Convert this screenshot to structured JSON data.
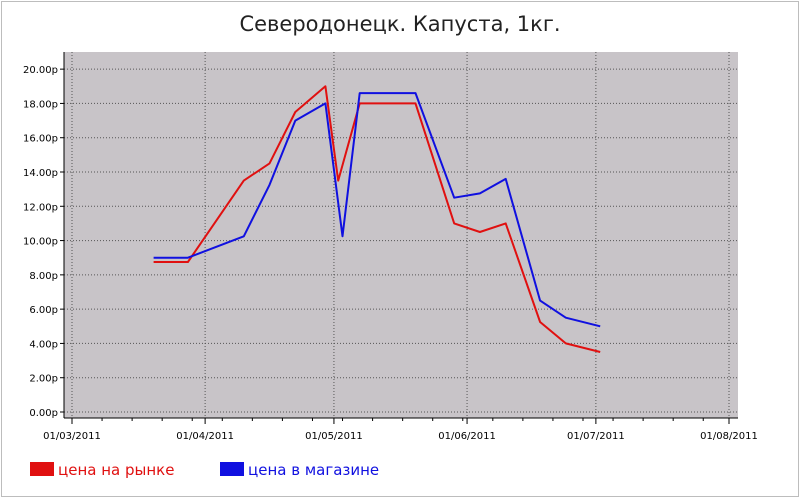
{
  "chart_data": {
    "type": "line",
    "title": "Северодонецк. Капуста, 1кг.",
    "xlabel": "",
    "ylabel": "",
    "ylim": [
      0,
      21
    ],
    "x_tick_labels": [
      "01/03/2011",
      "01/04/2011",
      "01/05/2011",
      "01/06/2011",
      "01/07/2011",
      "01/08/2011"
    ],
    "x_tick_dates": [
      "2011-03-01",
      "2011-04-01",
      "2011-05-01",
      "2011-06-01",
      "2011-07-01",
      "2011-08-01"
    ],
    "y_ticks": [
      0,
      2,
      4,
      6,
      8,
      10,
      12,
      14,
      16,
      18,
      20
    ],
    "y_tick_labels": [
      "0.00р",
      "2.00р",
      "4.00р",
      "6.00р",
      "8.00р",
      "10.00р",
      "12.00р",
      "14.00р",
      "16.00р",
      "18.00р",
      "20.00р"
    ],
    "grid": true,
    "legend": "bottom-left",
    "series": [
      {
        "name": "цена на рынке",
        "color": "#e01010",
        "points": [
          {
            "x": "2011-03-20",
            "y": 8.75
          },
          {
            "x": "2011-03-28",
            "y": 8.75
          },
          {
            "x": "2011-04-10",
            "y": 13.5
          },
          {
            "x": "2011-04-16",
            "y": 14.5
          },
          {
            "x": "2011-04-22",
            "y": 17.5
          },
          {
            "x": "2011-04-29",
            "y": 19.0
          },
          {
            "x": "2011-05-02",
            "y": 13.5
          },
          {
            "x": "2011-05-07",
            "y": 18.0
          },
          {
            "x": "2011-05-20",
            "y": 18.0
          },
          {
            "x": "2011-05-29",
            "y": 11.0
          },
          {
            "x": "2011-06-04",
            "y": 10.5
          },
          {
            "x": "2011-06-10",
            "y": 11.0
          },
          {
            "x": "2011-06-18",
            "y": 5.25
          },
          {
            "x": "2011-06-24",
            "y": 4.0
          },
          {
            "x": "2011-07-02",
            "y": 3.5
          }
        ]
      },
      {
        "name": "цена в магазине",
        "color": "#1010e0",
        "points": [
          {
            "x": "2011-03-20",
            "y": 9.0
          },
          {
            "x": "2011-03-28",
            "y": 9.0
          },
          {
            "x": "2011-04-10",
            "y": 10.25
          },
          {
            "x": "2011-04-16",
            "y": 13.25
          },
          {
            "x": "2011-04-22",
            "y": 17.0
          },
          {
            "x": "2011-04-29",
            "y": 18.0
          },
          {
            "x": "2011-05-03",
            "y": 10.25
          },
          {
            "x": "2011-05-07",
            "y": 18.6
          },
          {
            "x": "2011-05-20",
            "y": 18.6
          },
          {
            "x": "2011-05-29",
            "y": 12.5
          },
          {
            "x": "2011-06-04",
            "y": 12.75
          },
          {
            "x": "2011-06-10",
            "y": 13.6
          },
          {
            "x": "2011-06-18",
            "y": 6.5
          },
          {
            "x": "2011-06-24",
            "y": 5.5
          },
          {
            "x": "2011-07-02",
            "y": 5.0
          }
        ]
      }
    ]
  }
}
